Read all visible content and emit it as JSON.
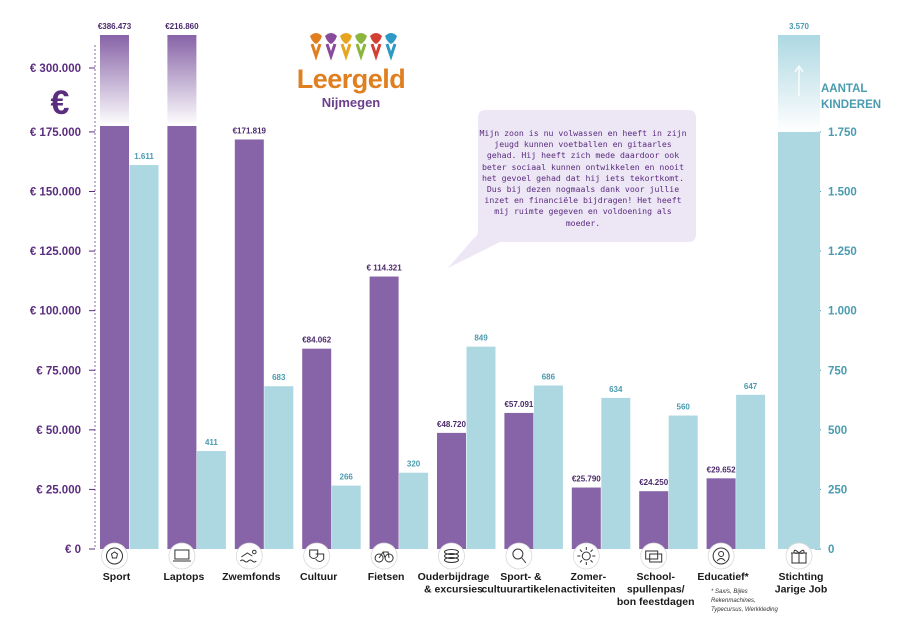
{
  "logo": {
    "name": "Leergeld",
    "city": "Nijmegen",
    "colors": [
      "#e07f1f",
      "#8a4a9c",
      "#e5a51f",
      "#8bb53f",
      "#d43f33",
      "#2d99c4"
    ]
  },
  "quote": "Mijn zoon is nu volwassen en heeft in zijn jeugd kunnen voetballen en gitaarles gehad. Hij heeft zich mede daardoor ook beter sociaal kunnen ontwikkelen en nooit het gevoel gehad dat hij iets tekortkomt. Dus bij dezen nogmaals dank voor jullie inzet en financiële bijdragen! Het heeft mij ruimte gegeven en voldoening als moeder.",
  "footnote": "* Sax/s, Bijles Rekenmachines, Typecursus, Werkkleding",
  "chart_data": {
    "type": "bar",
    "categories": [
      "Sport",
      "Laptops",
      "Zwemfonds",
      "Cultuur",
      "Fietsen",
      "Ouderbijdrage & excursies",
      "Sport- & cultuurartikelen",
      "Zomer-activiteiten",
      "School-spullenpas/ bon feestdagen",
      "Educatief*",
      "Stichting Jarige Job"
    ],
    "category_lines": [
      [
        "Sport"
      ],
      [
        "Laptops"
      ],
      [
        "Zwemfonds"
      ],
      [
        "Cultuur"
      ],
      [
        "Fietsen"
      ],
      [
        "Ouderbijdrage",
        "& excursies"
      ],
      [
        "Sport- &",
        "cultuurartikelen"
      ],
      [
        "Zomer-",
        "activiteiten"
      ],
      [
        "School-",
        "spullenpas/",
        "bon feestdagen"
      ],
      [
        "Educatief*"
      ],
      [
        "Stichting",
        "Jarige Job"
      ]
    ],
    "icons": [
      "football-icon",
      "laptop-icon",
      "swimmer-icon",
      "theater-masks-icon",
      "bicycle-icon",
      "coins-icon",
      "magnifier-icon",
      "sun-icon",
      "cards-icon",
      "education-icon",
      "gift-icon"
    ],
    "series": [
      {
        "key": "amount",
        "values": [
          386473,
          216860,
          171819,
          84062,
          114321,
          48720,
          57091,
          25790,
          24250,
          29652,
          null
        ],
        "labels": [
          "€386.473",
          "€216.860",
          "€171.819",
          "€84.062",
          "€ 114.321",
          "€48.720",
          "€57.091",
          "€25.790",
          "€24.250",
          "€29.652",
          ""
        ],
        "color": "#8763a7"
      },
      {
        "key": "children",
        "values": [
          1611,
          411,
          683,
          266,
          320,
          849,
          686,
          634,
          560,
          647,
          3570
        ],
        "labels": [
          "1.611",
          "411",
          "683",
          "266",
          "320",
          "849",
          "686",
          "634",
          "560",
          "647",
          "3.570"
        ],
        "color": "#add8e2"
      }
    ],
    "y_left": {
      "ticks": [
        0,
        25000,
        50000,
        75000,
        100000,
        125000,
        150000,
        175000,
        300000
      ],
      "tick_labels": [
        "€ 0",
        "€ 25.000",
        "€ 50.000",
        "€ 75.000",
        "€ 100.000",
        "€ 125.000",
        "€ 150.000",
        "€ 175.000",
        "€ 300.000"
      ],
      "scale_break_after": 175000,
      "symbol": "€",
      "color": "#5b2d7f"
    },
    "y_right": {
      "ticks": [
        0,
        250,
        500,
        750,
        1000,
        1250,
        1500,
        1750
      ],
      "tick_labels": [
        "0",
        "250",
        "500",
        "750",
        "1.000",
        "1.250",
        "1.500",
        "1.750"
      ],
      "scale_break_after": 1750,
      "label": "AANTAL KINDEREN",
      "label_lines": [
        "AANTAL",
        "KINDEREN"
      ],
      "color": "#4a9bb0"
    },
    "grid": false,
    "legend": "none"
  }
}
